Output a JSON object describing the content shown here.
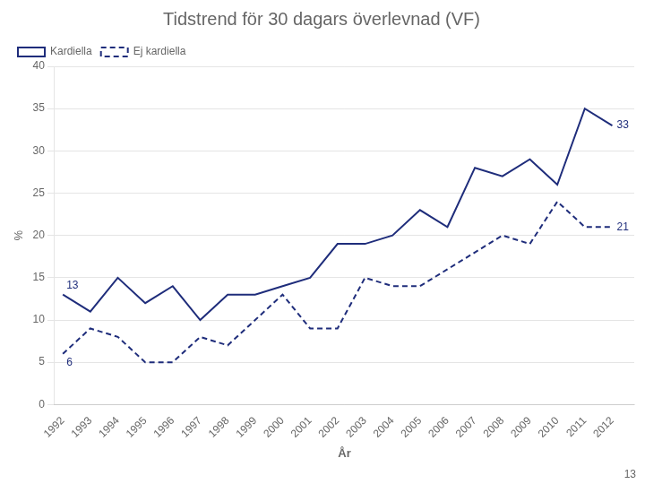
{
  "chart_data": {
    "type": "line",
    "title": "Tidstrend för 30 dagars överlevnad (VF)",
    "xlabel": "År",
    "ylabel": "%",
    "x": [
      1992,
      1993,
      1994,
      1995,
      1996,
      1997,
      1998,
      1999,
      2000,
      2001,
      2002,
      2003,
      2004,
      2005,
      2006,
      2007,
      2008,
      2009,
      2010,
      2011,
      2012
    ],
    "series": [
      {
        "name": "Kardiella",
        "color": "#1F2D7B",
        "line_style": "solid",
        "values": [
          13,
          11,
          15,
          12,
          14,
          10,
          13,
          13,
          14,
          15,
          19,
          19,
          20,
          23,
          21,
          28,
          27,
          29,
          26,
          35,
          33
        ]
      },
      {
        "name": "Ej kardiella",
        "color": "#1F2D7B",
        "line_style": "dashed",
        "values": [
          6,
          9,
          8,
          5,
          5,
          8,
          7,
          10,
          13,
          9,
          9,
          15,
          14,
          14,
          16,
          18,
          20,
          19,
          24,
          21,
          21
        ]
      }
    ],
    "xlim": [
      1991.7,
      2012.8
    ],
    "xticks": [
      1992,
      1993,
      1994,
      1995,
      1996,
      1997,
      1998,
      1999,
      2000,
      2001,
      2002,
      2003,
      2004,
      2005,
      2006,
      2007,
      2008,
      2009,
      2010,
      2011,
      2012
    ],
    "ylim": [
      0,
      40
    ],
    "yticks": [
      0,
      5,
      10,
      15,
      20,
      25,
      30,
      35,
      40
    ],
    "grid": "y",
    "legend": "upper left",
    "annotations": [
      {
        "text": "13",
        "x": 1992,
        "y": 13,
        "series": "Kardiella"
      },
      {
        "text": "6",
        "x": 1992,
        "y": 6,
        "series": "Ej kardiella"
      },
      {
        "text": "33",
        "x": 2012,
        "y": 33,
        "series": "Kardiella"
      },
      {
        "text": "21",
        "x": 2012,
        "y": 21,
        "series": "Ej kardiella"
      },
      {
        "text": "13"
      }
    ]
  }
}
